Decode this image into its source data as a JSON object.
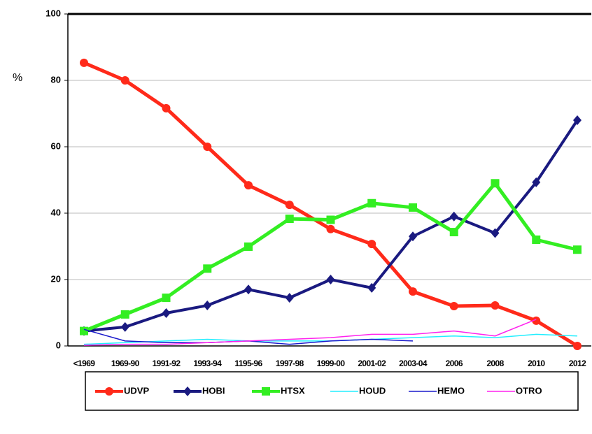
{
  "chart_data": {
    "type": "line",
    "y_label": "%",
    "categories": [
      "<1969",
      "1969-90",
      "1991-92",
      "1993-94",
      "1195-96",
      "1997-98",
      "1999-00",
      "2001-02",
      "2003-04",
      "2006",
      "2008",
      "2010",
      "2012"
    ],
    "series": [
      {
        "name": "UDVP",
        "color": "#ff2a1a",
        "marker": "circle",
        "width": 5,
        "values": [
          85.3,
          80,
          71.6,
          60,
          48.4,
          42.5,
          35.2,
          30.7,
          16.4,
          12,
          12.2,
          7.6,
          0
        ]
      },
      {
        "name": "HOBI",
        "color": "#1a1a80",
        "marker": "diamond",
        "width": 4,
        "values": [
          4.5,
          5.7,
          9.9,
          12.2,
          17,
          14.5,
          20,
          17.5,
          33,
          39,
          34,
          49.3,
          68
        ]
      },
      {
        "name": "HTSX",
        "color": "#33ee22",
        "marker": "square",
        "width": 5,
        "values": [
          4.5,
          9.5,
          14.5,
          23.3,
          29.9,
          38.3,
          38,
          43,
          41.7,
          34.3,
          49,
          32,
          29
        ]
      },
      {
        "name": "HOUD",
        "color": "#22eeff",
        "marker": "none",
        "width": 1.5,
        "values": [
          0.5,
          1,
          1.5,
          2,
          1.5,
          1.5,
          1.5,
          2,
          2.5,
          3,
          2.5,
          3.5,
          3
        ]
      },
      {
        "name": "HEMO",
        "color": "#1a1acc",
        "marker": "none",
        "width": 1.5,
        "values": [
          5,
          1.5,
          1,
          1,
          1.5,
          0.5,
          1.5,
          2,
          1.5,
          null,
          null,
          null,
          null
        ]
      },
      {
        "name": "OTRO",
        "color": "#ff22ee",
        "marker": "none",
        "width": 1.5,
        "values": [
          0.2,
          0.5,
          0.5,
          1,
          1.5,
          2,
          2.5,
          3.5,
          3.5,
          4.5,
          3,
          8,
          null
        ]
      }
    ],
    "ylim": [
      0,
      100
    ],
    "yticks": [
      0,
      20,
      40,
      60,
      80,
      100
    ],
    "grid": true,
    "legend": "bottom"
  }
}
